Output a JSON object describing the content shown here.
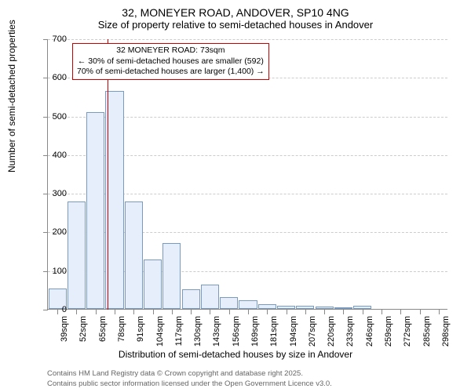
{
  "title": {
    "line1": "32, MONEYER ROAD, ANDOVER, SP10 4NG",
    "line2": "Size of property relative to semi-detached houses in Andover",
    "fontsize_line1": 14,
    "fontsize_line2": 13
  },
  "chart": {
    "type": "histogram",
    "ylabel": "Number of semi-detached properties",
    "xlabel": "Distribution of semi-detached houses by size in Andover",
    "label_fontsize": 12,
    "ylim": [
      0,
      700
    ],
    "ytick_step": 100,
    "yticks": [
      0,
      100,
      200,
      300,
      400,
      500,
      600,
      700
    ],
    "xticks": [
      "39sqm",
      "52sqm",
      "65sqm",
      "78sqm",
      "91sqm",
      "104sqm",
      "117sqm",
      "130sqm",
      "143sqm",
      "156sqm",
      "169sqm",
      "181sqm",
      "194sqm",
      "207sqm",
      "220sqm",
      "233sqm",
      "246sqm",
      "259sqm",
      "272sqm",
      "285sqm",
      "298sqm"
    ],
    "categories": [
      39,
      52,
      65,
      78,
      91,
      104,
      117,
      130,
      143,
      156,
      169,
      181,
      194,
      207,
      220,
      233,
      246,
      259,
      272,
      285,
      298
    ],
    "values": [
      52,
      278,
      510,
      565,
      278,
      128,
      170,
      50,
      62,
      30,
      22,
      12,
      8,
      8,
      6,
      3,
      8,
      0,
      0,
      0,
      0
    ],
    "bar_fill": "#e7eefb",
    "bar_stroke": "#7a9abf",
    "grid_color": "#cccccc",
    "axis_color": "#888888",
    "background_color": "#ffffff",
    "tick_fontsize": 11,
    "bar_width_ratio": 0.95
  },
  "reference_line": {
    "x_value": 73,
    "color": "#cc0000",
    "width": 1
  },
  "annotation": {
    "lines": [
      "32 MONEYER ROAD: 73sqm",
      "← 30% of semi-detached houses are smaller (592)",
      "70% of semi-detached houses are larger (1,400) →"
    ],
    "border_color": "#cc0000",
    "background_color": "#ffffff",
    "fontsize": 10.5
  },
  "attribution": {
    "line1": "Contains HM Land Registry data © Crown copyright and database right 2025.",
    "line2": "Contains public sector information licensed under the Open Government Licence v3.0.",
    "color": "#666666",
    "fontsize": 9.5
  }
}
